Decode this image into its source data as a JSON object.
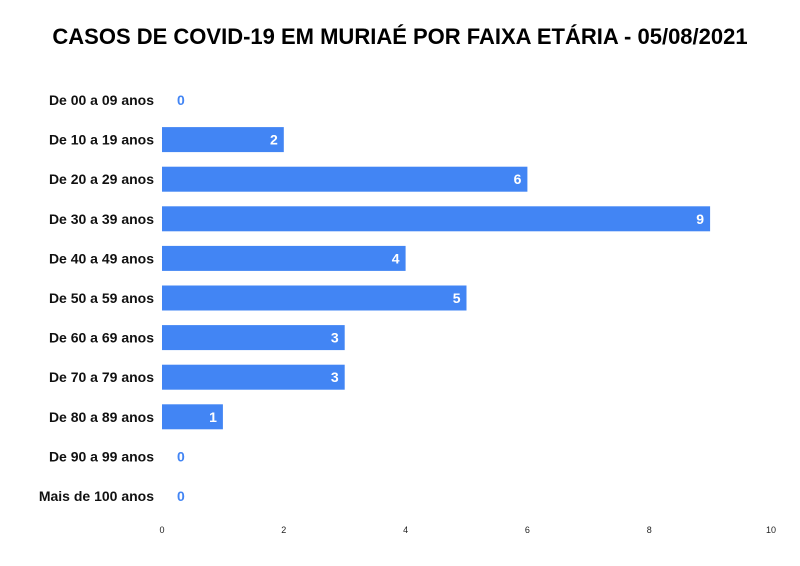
{
  "chart_data": {
    "type": "bar",
    "orientation": "horizontal",
    "title": "CASOS DE COVID-19 EM MURIAÉ POR FAIXA ETÁRIA - 05/08/2021",
    "categories": [
      "De 00 a 09 anos",
      "De 10 a 19 anos",
      "De 20 a 29 anos",
      "De 30 a 39 anos",
      "De 40 a 49 anos",
      "De 50 a 59 anos",
      "De 60 a 69 anos",
      "De 70 a 79 anos",
      "De 80 a 89 anos",
      "De 90 a 99 anos",
      "Mais de 100 anos"
    ],
    "values": [
      0,
      2,
      6,
      9,
      4,
      5,
      3,
      3,
      1,
      0,
      0
    ],
    "xlim": [
      0,
      10
    ],
    "xticks": [
      0,
      2,
      4,
      6,
      8,
      10
    ],
    "bar_color": "#4285f4",
    "data_labels": true,
    "grid": false,
    "legend": "none"
  }
}
